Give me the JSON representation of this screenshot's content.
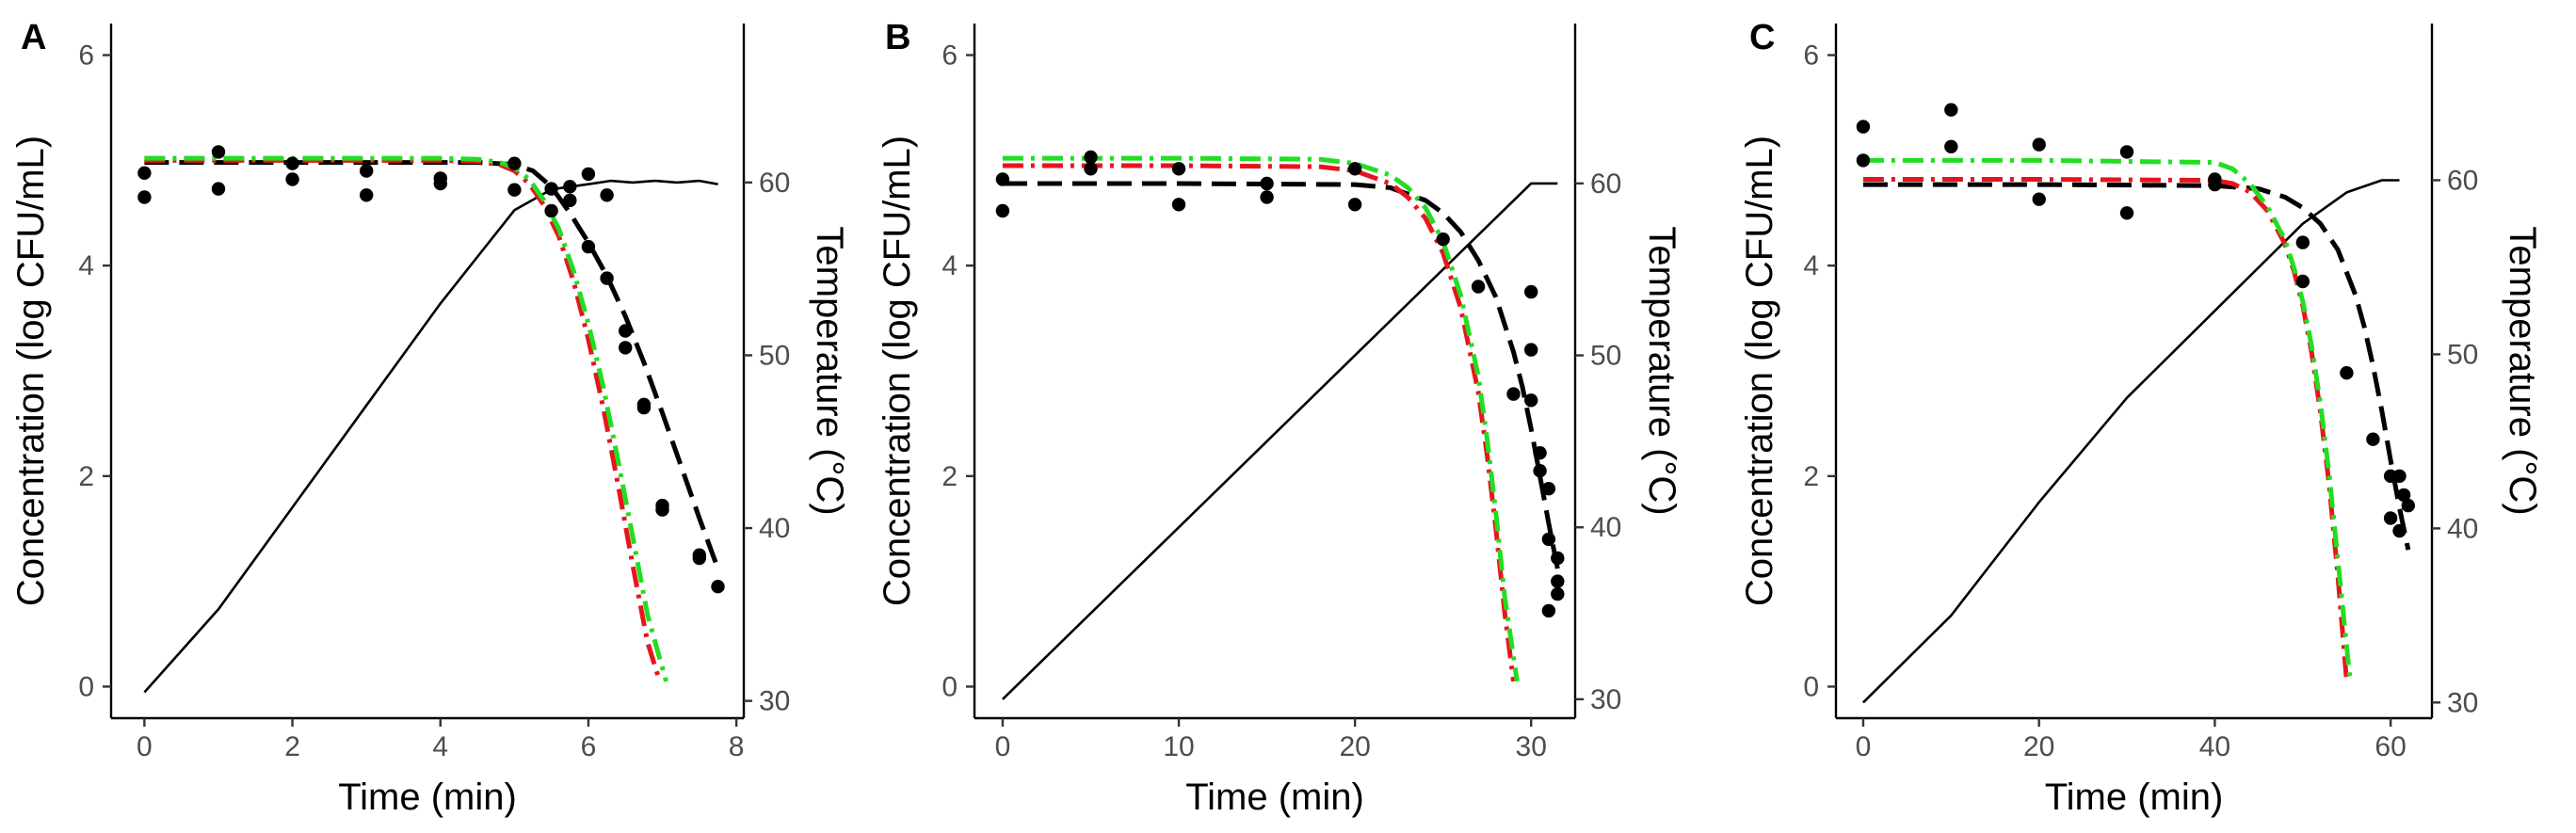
{
  "colors": {
    "observed": "#000000",
    "model_black": "#000000",
    "model_red": "#e8141c",
    "model_green": "#22dd22",
    "temperature": "#000000"
  },
  "chart_data": [
    {
      "type": "line",
      "panel_label": "A",
      "xlabel": "Time (min)",
      "ylabel": "Concentration (log CFU/mL)",
      "y2label": "Temperature (°C)",
      "xlim": [
        -0.45,
        8.1
      ],
      "ylim": [
        -0.3,
        6.3
      ],
      "y2lim": [
        29,
        69.2
      ],
      "xticks": [
        0,
        2,
        4,
        6,
        8
      ],
      "xtick_labels": [
        "0",
        "2",
        "4",
        "6",
        "8"
      ],
      "yticks": [
        0,
        2,
        4,
        6
      ],
      "ytick_labels": [
        "0",
        "2",
        "4",
        "6"
      ],
      "y2ticks": [
        30,
        40,
        50,
        60
      ],
      "y2tick_labels": [
        "30",
        "40",
        "50",
        "60"
      ],
      "observed": {
        "x": [
          0,
          0,
          1,
          1,
          2,
          2,
          3,
          3,
          4,
          4,
          5,
          5,
          5.5,
          5.5,
          5.75,
          5.75,
          6,
          6,
          6.25,
          6.25,
          6.5,
          6.5,
          6.75,
          6.75,
          7,
          7,
          7.5,
          7.5,
          7.75
        ],
        "y": [
          4.88,
          4.65,
          5.08,
          4.73,
          4.97,
          4.82,
          4.9,
          4.67,
          4.83,
          4.78,
          4.97,
          4.72,
          4.73,
          4.52,
          4.75,
          4.62,
          4.87,
          4.18,
          4.67,
          3.88,
          3.38,
          3.22,
          2.68,
          2.65,
          1.68,
          1.72,
          1.25,
          1.22,
          0.95
        ]
      },
      "series": [
        {
          "name": "temperature",
          "axis": "right",
          "style": "solid",
          "x": [
            0,
            1,
            2,
            3,
            4,
            5,
            5.5,
            6,
            6.3,
            6.6,
            6.9,
            7.2,
            7.5,
            7.75
          ],
          "y": [
            30.5,
            35.3,
            41.2,
            47.1,
            53,
            58.4,
            59.6,
            59.9,
            60.1,
            60,
            60.1,
            60,
            60.1,
            59.9
          ]
        },
        {
          "name": "model-black",
          "axis": "left",
          "style": "longdash",
          "x": [
            0,
            1,
            2,
            3,
            4,
            4.5,
            5,
            5.25,
            5.5,
            5.75,
            6,
            6.25,
            6.5,
            6.75,
            7,
            7.25,
            7.5,
            7.75
          ],
          "y": [
            4.98,
            4.98,
            4.98,
            4.98,
            4.98,
            4.98,
            4.96,
            4.9,
            4.75,
            4.5,
            4.22,
            3.9,
            3.52,
            3.08,
            2.6,
            2.1,
            1.6,
            1.12
          ]
        },
        {
          "name": "model-red",
          "axis": "left",
          "style": "dashdot",
          "x": [
            0,
            1,
            2,
            3,
            4,
            4.5,
            4.8,
            5,
            5.2,
            5.4,
            5.6,
            5.8,
            6,
            6.2,
            6.4,
            6.6,
            6.8,
            6.95
          ],
          "y": [
            5,
            5,
            5,
            5,
            5,
            4.99,
            4.96,
            4.9,
            4.78,
            4.57,
            4.28,
            3.85,
            3.3,
            2.65,
            1.92,
            1.15,
            0.42,
            0.08
          ]
        },
        {
          "name": "model-green",
          "axis": "left",
          "style": "dashdot",
          "x": [
            0,
            1,
            2,
            3,
            4,
            4.5,
            4.8,
            5,
            5.2,
            5.4,
            5.6,
            5.8,
            6,
            6.2,
            6.4,
            6.6,
            6.8,
            7.05
          ],
          "y": [
            5.02,
            5.02,
            5.02,
            5.02,
            5.02,
            5.01,
            4.98,
            4.93,
            4.82,
            4.62,
            4.35,
            3.95,
            3.45,
            2.85,
            2.15,
            1.42,
            0.68,
            0.05
          ]
        }
      ]
    },
    {
      "type": "line",
      "panel_label": "B",
      "xlabel": "Time (min)",
      "ylabel": "Concentration (log CFU/mL)",
      "y2label": "Temperature (°C)",
      "xlim": [
        -1.6,
        32.5
      ],
      "ylim": [
        -0.3,
        6.3
      ],
      "y2lim": [
        28.9,
        69.3
      ],
      "xticks": [
        0,
        10,
        20,
        30
      ],
      "xtick_labels": [
        "0",
        "10",
        "20",
        "30"
      ],
      "yticks": [
        0,
        2,
        4,
        6
      ],
      "ytick_labels": [
        "0",
        "2",
        "4",
        "6"
      ],
      "y2ticks": [
        30,
        40,
        50,
        60
      ],
      "y2tick_labels": [
        "30",
        "40",
        "50",
        "60"
      ],
      "observed": {
        "x": [
          0,
          0,
          5,
          5,
          10,
          10,
          15,
          15,
          20,
          20,
          25,
          27,
          29,
          30,
          30,
          30,
          30.5,
          30.5,
          31,
          31,
          31,
          31.5,
          31.5,
          31.5
        ],
        "y": [
          4.82,
          4.52,
          5.03,
          4.92,
          4.92,
          4.58,
          4.78,
          4.65,
          4.92,
          4.58,
          4.25,
          3.8,
          2.78,
          3.75,
          3.2,
          2.72,
          2.22,
          2.05,
          1.88,
          1.4,
          0.72,
          1.22,
          1.0,
          0.88
        ]
      },
      "series": [
        {
          "name": "temperature",
          "axis": "right",
          "style": "solid",
          "x": [
            0,
            30,
            30.5,
            31.5
          ],
          "y": [
            30,
            60,
            60,
            60
          ]
        },
        {
          "name": "model-black",
          "axis": "left",
          "style": "longdash",
          "x": [
            0,
            10,
            20,
            22,
            24,
            25,
            26,
            27,
            28,
            29,
            29.5,
            30,
            30.5,
            31,
            31.5
          ],
          "y": [
            4.78,
            4.78,
            4.77,
            4.74,
            4.62,
            4.5,
            4.32,
            4.05,
            3.7,
            3.18,
            2.85,
            2.45,
            2.0,
            1.55,
            1.12
          ]
        },
        {
          "name": "model-red",
          "axis": "left",
          "style": "dashdot",
          "x": [
            0,
            10,
            18,
            20,
            22,
            23,
            24,
            25,
            26,
            27,
            27.5,
            28,
            28.5,
            29
          ],
          "y": [
            4.95,
            4.95,
            4.94,
            4.9,
            4.78,
            4.65,
            4.45,
            4.12,
            3.6,
            2.8,
            2.2,
            1.5,
            0.7,
            0.05
          ]
        },
        {
          "name": "model-green",
          "axis": "left",
          "style": "dashdot",
          "x": [
            0,
            10,
            18,
            20,
            22,
            23,
            24,
            25,
            26,
            27,
            27.5,
            28,
            28.5,
            29.2
          ],
          "y": [
            5.02,
            5.02,
            5.01,
            4.97,
            4.86,
            4.74,
            4.55,
            4.23,
            3.72,
            2.95,
            2.35,
            1.65,
            0.85,
            0.05
          ]
        }
      ]
    },
    {
      "type": "line",
      "panel_label": "C",
      "xlabel": "Time (min)",
      "ylabel": "Concentration (log CFU/mL)",
      "y2label": "Temperature (°C)",
      "xlim": [
        -3.1,
        64.7
      ],
      "ylim": [
        -0.3,
        6.3
      ],
      "y2lim": [
        29.1,
        69
      ],
      "xticks": [
        0,
        20,
        40,
        60
      ],
      "xtick_labels": [
        "0",
        "20",
        "40",
        "60"
      ],
      "yticks": [
        0,
        2,
        4,
        6
      ],
      "ytick_labels": [
        "0",
        "2",
        "4",
        "6"
      ],
      "y2ticks": [
        30,
        40,
        50,
        60
      ],
      "y2tick_labels": [
        "30",
        "40",
        "50",
        "60"
      ],
      "observed": {
        "x": [
          0,
          0,
          10,
          10,
          20,
          20,
          30,
          30,
          40,
          40,
          50,
          50,
          55,
          58,
          60,
          60,
          61,
          61,
          61.5,
          62
        ],
        "y": [
          5.32,
          5.0,
          5.48,
          5.13,
          5.15,
          4.63,
          5.08,
          4.5,
          4.82,
          4.77,
          4.22,
          3.85,
          2.98,
          2.35,
          2.0,
          1.6,
          2.0,
          1.48,
          1.82,
          1.72
        ]
      },
      "series": [
        {
          "name": "temperature",
          "axis": "right",
          "style": "solid",
          "x": [
            0,
            10,
            20,
            30,
            40,
            50,
            55,
            59,
            60,
            61
          ],
          "y": [
            30,
            35,
            41.5,
            47.5,
            52.5,
            57.5,
            59.3,
            60,
            60,
            60
          ]
        },
        {
          "name": "model-black",
          "axis": "left",
          "style": "longdash",
          "x": [
            0,
            20,
            40,
            45,
            48,
            50,
            52,
            54,
            56,
            57,
            58,
            59,
            60,
            61,
            62
          ],
          "y": [
            4.77,
            4.77,
            4.76,
            4.73,
            4.65,
            4.55,
            4.4,
            4.15,
            3.72,
            3.42,
            3.05,
            2.62,
            2.15,
            1.7,
            1.3
          ]
        },
        {
          "name": "model-red",
          "axis": "left",
          "style": "dashdot",
          "x": [
            0,
            20,
            40,
            42,
            44,
            46,
            48,
            49,
            50,
            51,
            52,
            53,
            54,
            55
          ],
          "y": [
            4.82,
            4.82,
            4.81,
            4.78,
            4.7,
            4.52,
            4.2,
            3.95,
            3.62,
            3.18,
            2.62,
            1.92,
            1.05,
            0.05
          ]
        },
        {
          "name": "model-green",
          "axis": "left",
          "style": "dashdot",
          "x": [
            0,
            20,
            40,
            42,
            44,
            46,
            48,
            49,
            50,
            51,
            52,
            53,
            54,
            55.4
          ],
          "y": [
            5.0,
            5.0,
            4.98,
            4.92,
            4.78,
            4.56,
            4.24,
            3.98,
            3.66,
            3.24,
            2.7,
            2.02,
            1.2,
            0.05
          ]
        }
      ]
    }
  ]
}
